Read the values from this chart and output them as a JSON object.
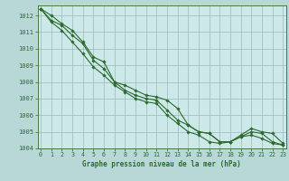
{
  "title": "Graphe pression niveau de la mer (hPa)",
  "x_hours": [
    0,
    1,
    2,
    3,
    4,
    5,
    6,
    7,
    8,
    9,
    10,
    11,
    12,
    13,
    14,
    15,
    16,
    17,
    18,
    19,
    20,
    21,
    22,
    23
  ],
  "line_top": [
    1012.4,
    1012.0,
    1011.5,
    1011.1,
    1010.4,
    1009.5,
    1009.2,
    1008.0,
    1007.8,
    1007.5,
    1007.2,
    1007.1,
    1006.9,
    1006.4,
    1005.4,
    1005.0,
    1004.9,
    1004.4,
    1004.4,
    1004.8,
    1005.2,
    1005.0,
    1004.9,
    1004.3
  ],
  "line_mid": [
    1012.4,
    1011.7,
    1011.4,
    1010.8,
    1010.3,
    1009.3,
    1008.8,
    1008.0,
    1007.5,
    1007.2,
    1007.0,
    1006.9,
    1006.3,
    1005.7,
    1005.4,
    1005.0,
    1004.9,
    1004.4,
    1004.4,
    1004.7,
    1005.0,
    1004.9,
    1004.4,
    1004.2
  ],
  "line_bot": [
    1012.4,
    1011.6,
    1011.1,
    1010.4,
    1009.7,
    1008.9,
    1008.4,
    1007.8,
    1007.4,
    1007.0,
    1006.8,
    1006.7,
    1006.0,
    1005.5,
    1005.0,
    1004.8,
    1004.4,
    1004.3,
    1004.4,
    1004.7,
    1004.8,
    1004.6,
    1004.3,
    1004.2
  ],
  "ylim": [
    1004,
    1012.6
  ],
  "yticks": [
    1004,
    1005,
    1006,
    1007,
    1008,
    1009,
    1010,
    1011,
    1012
  ],
  "xlim": [
    -0.3,
    23.3
  ],
  "xticks": [
    0,
    1,
    2,
    3,
    4,
    5,
    6,
    7,
    8,
    9,
    10,
    11,
    12,
    13,
    14,
    15,
    16,
    17,
    18,
    19,
    20,
    21,
    22,
    23
  ],
  "line_color": "#2d6a2d",
  "marker_color": "#2d6a2d",
  "bg_plot": "#cce8e8",
  "bg_fig": "#b8d8d8",
  "grid_color": "#99bbbb",
  "tick_color": "#2d6a2d",
  "label_color": "#2d6a2d"
}
